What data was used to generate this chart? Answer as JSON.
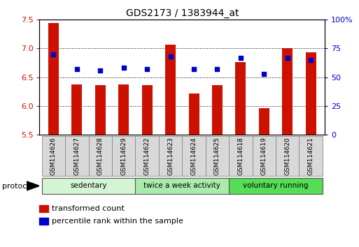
{
  "title": "GDS2173 / 1383944_at",
  "samples": [
    "GSM114626",
    "GSM114627",
    "GSM114628",
    "GSM114629",
    "GSM114622",
    "GSM114623",
    "GSM114624",
    "GSM114625",
    "GSM114618",
    "GSM114619",
    "GSM114620",
    "GSM114621"
  ],
  "transformed_count": [
    7.44,
    6.38,
    6.36,
    6.38,
    6.36,
    7.07,
    6.21,
    6.36,
    6.76,
    5.96,
    7.01,
    6.93
  ],
  "percentile_rank": [
    70,
    57,
    56,
    58,
    57,
    68,
    57,
    57,
    67,
    53,
    67,
    65
  ],
  "left_ylim": [
    5.5,
    7.5
  ],
  "right_ylim": [
    0,
    100
  ],
  "left_yticks": [
    5.5,
    6.0,
    6.5,
    7.0,
    7.5
  ],
  "right_yticks": [
    0,
    25,
    50,
    75,
    100
  ],
  "right_yticklabels": [
    "0",
    "25",
    "50",
    "75",
    "100%"
  ],
  "groups": [
    {
      "label": "sedentary",
      "start": 0,
      "end": 4,
      "color": "#d4f5d4"
    },
    {
      "label": "twice a week activity",
      "start": 4,
      "end": 8,
      "color": "#aaeaaa"
    },
    {
      "label": "voluntary running",
      "start": 8,
      "end": 12,
      "color": "#55dd55"
    }
  ],
  "bar_color": "#cc1100",
  "dot_color": "#0000cc",
  "bar_width": 0.45,
  "tick_label_color_left": "#cc1100",
  "tick_label_color_right": "#0000cc",
  "protocol_label": "protocol",
  "legend_red": "transformed count",
  "legend_blue": "percentile rank within the sample"
}
